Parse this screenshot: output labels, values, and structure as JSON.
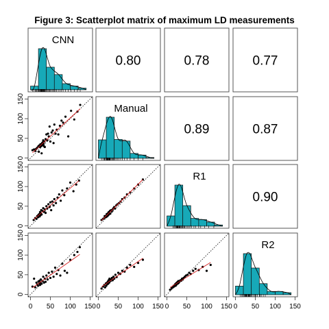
{
  "chart_data": {
    "type": "scatter",
    "subtype": "scatterplot-matrix",
    "title": "Figure 3: Scatterplot matrix of maximum LD measurements",
    "variables": [
      "CNN",
      "Manual",
      "R1",
      "R2"
    ],
    "axis_ticks": [
      "0",
      "50",
      "100",
      "150"
    ],
    "axis_range": [
      0,
      150
    ],
    "correlations": [
      {
        "row": 0,
        "col": 1,
        "label": "0.80"
      },
      {
        "row": 0,
        "col": 2,
        "label": "0.78"
      },
      {
        "row": 0,
        "col": 3,
        "label": "0.77"
      },
      {
        "row": 1,
        "col": 2,
        "label": "0.89"
      },
      {
        "row": 1,
        "col": 3,
        "label": "0.87"
      },
      {
        "row": 2,
        "col": 3,
        "label": "0.90"
      }
    ],
    "histogram_bin_edges": [
      0,
      20,
      40,
      60,
      80,
      100,
      120,
      140
    ],
    "histograms": {
      "CNN": [
        0.09,
        1.0,
        0.55,
        0.37,
        0.15,
        0.09,
        0.04
      ],
      "Manual": [
        0.45,
        1.0,
        0.46,
        0.42,
        0.12,
        0.08,
        0.02
      ],
      "R1": [
        0.25,
        1.0,
        0.5,
        0.19,
        0.16,
        0.1,
        0.03
      ],
      "R2": [
        0.21,
        1.0,
        0.65,
        0.27,
        0.08,
        0.08,
        0.05
      ]
    },
    "scatter": {
      "Manual_vs_CNN": {
        "x": [
          5,
          9,
          12,
          14,
          16,
          18,
          20,
          21,
          22,
          24,
          25,
          26,
          27,
          28,
          29,
          30,
          31,
          32,
          33,
          34,
          35,
          36,
          38,
          40,
          42,
          44,
          46,
          48,
          50,
          53,
          56,
          58,
          60,
          63,
          66,
          70,
          74,
          78,
          82,
          88,
          95,
          102,
          110,
          118,
          125
        ],
        "y": [
          20,
          22,
          18,
          23,
          25,
          27,
          30,
          16,
          32,
          28,
          35,
          30,
          34,
          12,
          38,
          33,
          40,
          45,
          36,
          30,
          42,
          28,
          48,
          60,
          45,
          62,
          55,
          80,
          42,
          65,
          70,
          38,
          85,
          62,
          72,
          60,
          82,
          95,
          90,
          105,
          55,
          120,
          98,
          118,
          135
        ]
      },
      "R1_vs_CNN": {
        "x": [
          8,
          12,
          15,
          17,
          19,
          20,
          22,
          23,
          24,
          25,
          26,
          27,
          28,
          30,
          32,
          34,
          36,
          38,
          40,
          42,
          45,
          48,
          50,
          52,
          55,
          58,
          60,
          64,
          68,
          72,
          76,
          80,
          85,
          92,
          100,
          108,
          115,
          122
        ],
        "y": [
          15,
          20,
          18,
          25,
          22,
          28,
          30,
          24,
          35,
          27,
          32,
          40,
          29,
          38,
          45,
          36,
          42,
          33,
          50,
          44,
          55,
          48,
          60,
          40,
          62,
          52,
          68,
          58,
          72,
          80,
          64,
          90,
          78,
          95,
          110,
          88,
          105,
          115
        ]
      },
      "R1_vs_Manual": {
        "x": [
          8,
          12,
          15,
          16,
          18,
          20,
          21,
          22,
          23,
          24,
          25,
          26,
          27,
          28,
          29,
          30,
          32,
          34,
          36,
          38,
          40,
          42,
          45,
          48,
          52,
          56,
          60,
          66,
          72,
          80,
          90,
          100,
          112
        ],
        "y": [
          15,
          18,
          20,
          25,
          22,
          26,
          30,
          24,
          28,
          32,
          27,
          35,
          30,
          33,
          38,
          31,
          40,
          37,
          42,
          45,
          48,
          44,
          52,
          55,
          58,
          62,
          68,
          72,
          80,
          85,
          95,
          105,
          118
        ]
      },
      "R2_vs_CNN": {
        "x": [
          5,
          9,
          12,
          15,
          17,
          19,
          20,
          22,
          23,
          24,
          25,
          26,
          28,
          30,
          32,
          34,
          36,
          38,
          40,
          43,
          46,
          50,
          54,
          58,
          62,
          66,
          70,
          75,
          80,
          86,
          92,
          100,
          110,
          118,
          124
        ],
        "y": [
          20,
          40,
          18,
          30,
          25,
          22,
          33,
          28,
          35,
          24,
          30,
          38,
          27,
          34,
          45,
          30,
          40,
          32,
          48,
          38,
          55,
          42,
          58,
          45,
          68,
          52,
          62,
          48,
          78,
          60,
          55,
          88,
          100,
          108,
          120
        ]
      },
      "R2_vs_Manual": {
        "x": [
          8,
          12,
          15,
          17,
          19,
          20,
          22,
          23,
          24,
          25,
          26,
          27,
          28,
          30,
          32,
          34,
          36,
          38,
          40,
          43,
          46,
          50,
          55,
          60,
          66,
          72,
          80,
          90,
          100,
          112
        ],
        "y": [
          15,
          20,
          24,
          18,
          28,
          22,
          30,
          26,
          33,
          28,
          36,
          30,
          40,
          34,
          38,
          42,
          36,
          45,
          40,
          50,
          44,
          55,
          52,
          60,
          58,
          68,
          75,
          70,
          80,
          88
        ]
      },
      "R2_vs_R1": {
        "x": [
          8,
          12,
          15,
          17,
          18,
          20,
          21,
          22,
          23,
          24,
          25,
          26,
          27,
          28,
          29,
          30,
          32,
          34,
          36,
          38,
          40,
          42,
          45,
          48,
          52,
          56,
          60,
          66,
          72,
          80,
          90,
          100,
          110
        ],
        "y": [
          12,
          16,
          18,
          22,
          20,
          24,
          26,
          22,
          28,
          25,
          30,
          27,
          32,
          28,
          34,
          30,
          33,
          36,
          35,
          40,
          38,
          42,
          45,
          48,
          50,
          55,
          52,
          60,
          65,
          62,
          70,
          60,
          75
        ]
      }
    }
  }
}
